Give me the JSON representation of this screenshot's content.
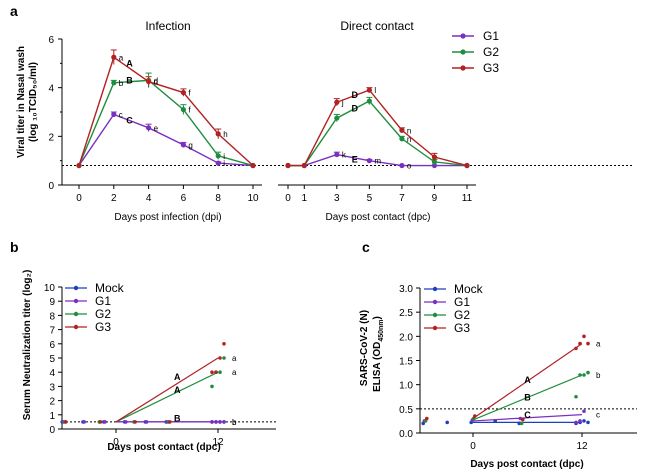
{
  "colors": {
    "G1": "#7B2FBE",
    "G2": "#1E8E3E",
    "G3": "#B22222",
    "Mock": "#1F3FBF"
  },
  "panel_labels": [
    "a",
    "b",
    "c"
  ],
  "chart_data": [
    {
      "type": "line",
      "panel": "a",
      "title": "Infection",
      "ylabel": "Viral titer in Nasal wash (log₁₀TCID₅₀/ml)",
      "ylabel_line1": "Viral titer in Nasal wash",
      "ylabel_line2": "(log ₁₀TCID₅₀/ml)",
      "xlabel": "Days post infection (dpi)",
      "ylim": [
        0,
        6
      ],
      "yticks": [
        0,
        2,
        4,
        6
      ],
      "x": [
        0,
        2,
        4,
        6,
        8,
        10
      ],
      "detection_limit": 0.8,
      "series": [
        {
          "name": "G1",
          "values": [
            0.8,
            2.9,
            2.35,
            1.65,
            0.9,
            0.8
          ],
          "err": [
            0,
            0.1,
            0.15,
            0.1,
            0.05,
            0
          ],
          "labels": [
            "",
            "c",
            "e",
            "g",
            "i",
            ""
          ]
        },
        {
          "name": "G2",
          "values": [
            0.8,
            4.2,
            4.3,
            3.1,
            1.2,
            0.8
          ],
          "err": [
            0,
            0.1,
            0.3,
            0.2,
            0.15,
            0
          ],
          "labels": [
            "",
            "b",
            "d",
            "f",
            "i",
            ""
          ]
        },
        {
          "name": "G3",
          "values": [
            0.8,
            5.25,
            4.25,
            3.8,
            2.1,
            0.8
          ],
          "err": [
            0,
            0.3,
            0.2,
            0.15,
            0.2,
            0
          ],
          "labels": [
            "",
            "a",
            "d",
            "f",
            "h",
            ""
          ]
        }
      ],
      "group_annotations": [
        {
          "text": "A",
          "x": 2.9,
          "y": 5.0
        },
        {
          "text": "B",
          "x": 2.9,
          "y": 4.3
        },
        {
          "text": "C",
          "x": 2.9,
          "y": 2.65
        }
      ]
    },
    {
      "type": "line",
      "panel": "a",
      "title": "Direct contact",
      "xlabel": "Days post contact (dpc)",
      "ylim": [
        0,
        6
      ],
      "x": [
        0,
        1,
        3,
        5,
        7,
        9,
        11
      ],
      "detection_limit": 0.8,
      "series": [
        {
          "name": "G1",
          "values": [
            0.8,
            0.8,
            1.25,
            1.0,
            0.8,
            0.8,
            0.8
          ],
          "err": [
            0,
            0,
            0.1,
            0.05,
            0,
            0,
            0
          ],
          "labels": [
            "",
            "",
            "k",
            "m",
            "o",
            "",
            ""
          ]
        },
        {
          "name": "G2",
          "values": [
            0.8,
            0.8,
            2.75,
            3.45,
            1.9,
            0.95,
            0.8
          ],
          "err": [
            0,
            0,
            0.15,
            0.15,
            0.1,
            0.1,
            0
          ],
          "labels": [
            "",
            "",
            "",
            "",
            "n",
            "",
            ""
          ]
        },
        {
          "name": "G3",
          "values": [
            0.8,
            0.8,
            3.4,
            3.9,
            2.25,
            1.15,
            0.8
          ],
          "err": [
            0,
            0,
            0.15,
            0.1,
            0.1,
            0.15,
            0
          ],
          "labels": [
            "",
            "",
            "j",
            "l",
            "n",
            "",
            ""
          ]
        }
      ],
      "group_annotations": [
        {
          "text": "D",
          "x": 4.1,
          "y": 3.7
        },
        {
          "text": "D",
          "x": 4.1,
          "y": 3.15
        },
        {
          "text": "E",
          "x": 4.1,
          "y": 1.05
        }
      ]
    },
    {
      "type": "scatter",
      "panel": "b",
      "ylabel": "Serum Neutralization titer (log₂)",
      "xlabel": "Days post contact (dpc)",
      "ylim": [
        0,
        10
      ],
      "yticks": [
        0,
        1,
        2,
        3,
        4,
        5,
        6,
        7,
        8,
        9,
        10
      ],
      "xticks": [
        0,
        12
      ],
      "detection_limit": 0.5,
      "legend": [
        "Mock",
        "G1",
        "G2",
        "G3"
      ],
      "series": [
        {
          "name": "Mock",
          "line": [
            0.5,
            0.5
          ],
          "points0": [
            0.5,
            0.5,
            0.5,
            0.5,
            0.5,
            0.5
          ],
          "points12": [
            0.5,
            0.5,
            0.5,
            0.5
          ],
          "end_label": "b"
        },
        {
          "name": "G1",
          "line": [
            0.5,
            0.5
          ],
          "points0": [
            0.5,
            0.5,
            0.5,
            0.5,
            0.5,
            0.5
          ],
          "points12": [
            0.5,
            0.5,
            0.5,
            0.5
          ],
          "end_label": "b"
        },
        {
          "name": "G2",
          "line": [
            0.5,
            4.0
          ],
          "points0": [
            0.5,
            0.5,
            0.5,
            0.5
          ],
          "points12": [
            3.0,
            4.0,
            4.0,
            5.0
          ],
          "end_label": "a"
        },
        {
          "name": "G3",
          "line": [
            0.5,
            5.0
          ],
          "points0": [
            0.5,
            0.5,
            0.5,
            0.5
          ],
          "points12": [
            4.0,
            4.0,
            5.0,
            6.0
          ],
          "end_label": "a"
        }
      ],
      "group_annotations": [
        {
          "text": "A",
          "x": 7.2,
          "y": 3.65
        },
        {
          "text": "A",
          "x": 7.2,
          "y": 2.75
        },
        {
          "text": "B",
          "x": 7.2,
          "y": 0.75
        }
      ]
    },
    {
      "type": "scatter",
      "panel": "c",
      "ylabel": "SARS-CoV-2 (N) ELISA (OD₄₅₀ₙₘ)",
      "ylabel_line1": "SARS-CoV-2 (N)",
      "ylabel_line2": "ELISA (OD",
      "ylabel_sub": "450nm",
      "xlabel": "Days post contact (dpc)",
      "ylim": [
        0,
        3.0
      ],
      "yticks": [
        0.0,
        0.5,
        1.0,
        1.5,
        2.0,
        2.5,
        3.0
      ],
      "ytick_labels": [
        "0.0",
        "0.5",
        "1.0",
        "1.5",
        "2.0",
        "2.5",
        "3.0"
      ],
      "xticks": [
        0,
        12
      ],
      "detection_limit": 0.5,
      "legend": [
        "Mock",
        "G1",
        "G2",
        "G3"
      ],
      "series": [
        {
          "name": "Mock",
          "line": [
            0.22,
            0.22
          ],
          "points0": [
            0.2,
            0.22,
            0.22,
            0.25,
            0.2
          ],
          "points12": [
            0.2,
            0.22,
            0.25,
            0.22
          ],
          "end_label": ""
        },
        {
          "name": "G1",
          "line": [
            0.25,
            0.38
          ],
          "points0": [
            0.25,
            0.27,
            0.3
          ],
          "points12": [
            0.22,
            0.25,
            0.45
          ],
          "end_label": "c"
        },
        {
          "name": "G2",
          "line": [
            0.27,
            1.2
          ],
          "points0": [
            0.25,
            0.3,
            0.2
          ],
          "points12": [
            0.75,
            1.2,
            1.2,
            1.25
          ],
          "end_label": "b"
        },
        {
          "name": "G3",
          "line": [
            0.3,
            1.85
          ],
          "points0": [
            0.3,
            0.35,
            0.28
          ],
          "points12": [
            1.75,
            1.85,
            2.0,
            1.85
          ],
          "end_label": "a"
        }
      ],
      "group_annotations": [
        {
          "text": "A",
          "x": 6.0,
          "y": 1.1
        },
        {
          "text": "B",
          "x": 6.0,
          "y": 0.73
        },
        {
          "text": "C",
          "x": 6.0,
          "y": 0.37
        }
      ]
    }
  ],
  "legend_a": [
    "G1",
    "G2",
    "G3"
  ]
}
